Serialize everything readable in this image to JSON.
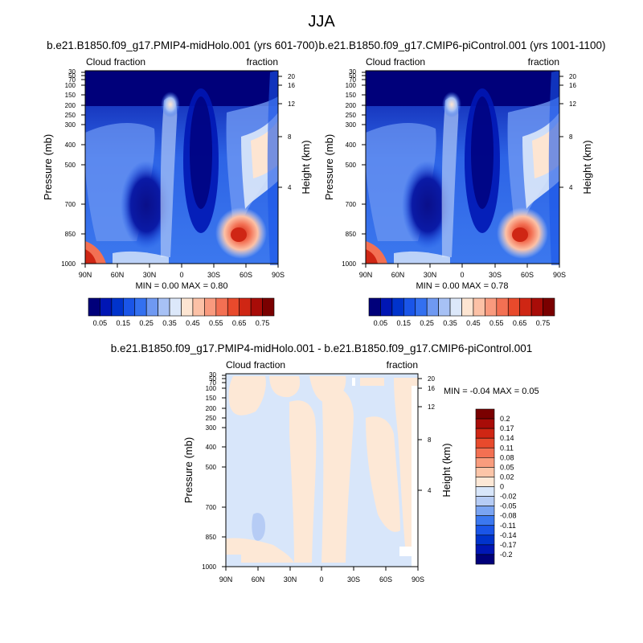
{
  "figure_title": "JJA",
  "colors": {
    "seq_palette": [
      "#00007a",
      "#0016b4",
      "#0033cc",
      "#1a55e8",
      "#3370f0",
      "#6f99f2",
      "#a7c1f5",
      "#dce8fa",
      "#fde5d2",
      "#fcc1a6",
      "#f99a7e",
      "#f37053",
      "#e84a2c",
      "#cf2614",
      "#a80c08",
      "#7a0000"
    ],
    "diff_palette": [
      "#00007a",
      "#0016b4",
      "#0033cc",
      "#1a55e8",
      "#3b78f0",
      "#7aa4f2",
      "#b6ccf5",
      "#d8e6fa",
      "#fde8d6",
      "#fcc5a8",
      "#f99c7d",
      "#f37052",
      "#e84a2c",
      "#cf2614",
      "#a80c08",
      "#7a0000"
    ]
  },
  "chart_data": [
    {
      "type": "heatmap",
      "title": "b.e21.B1850.f09_g17.PMIP4-midHolo.001 (yrs 601-700)",
      "left_label": "Cloud fraction",
      "right_label": "fraction",
      "xlabel": "",
      "ylabel": "Pressure (mb)",
      "y2label": "Height (km)",
      "x_ticks": [
        "90N",
        "60N",
        "30N",
        "0",
        "30S",
        "60S",
        "90S"
      ],
      "x_range": [
        90,
        -90
      ],
      "y_ticks": [
        "30",
        "50",
        "70",
        "100",
        "150",
        "200",
        "250",
        "300",
        "400",
        "500",
        "700",
        "850",
        "1000"
      ],
      "y_range_mb": [
        30,
        1000
      ],
      "y2_ticks": [
        "20",
        "16",
        "12",
        "8",
        "4"
      ],
      "min_text": "MIN =   0.00   MAX =   0.80",
      "colorbar_labels": [
        "0.05",
        "0.15",
        "0.25",
        "0.35",
        "0.45",
        "0.55",
        "0.65",
        "0.75"
      ]
    },
    {
      "type": "heatmap",
      "title": "b.e21.B1850.f09_g17.CMIP6-piControl.001 (yrs 1001-1100)",
      "left_label": "Cloud fraction",
      "right_label": "fraction",
      "xlabel": "",
      "ylabel": "Pressure (mb)",
      "y2label": "Height (km)",
      "x_ticks": [
        "90N",
        "60N",
        "30N",
        "0",
        "30S",
        "60S",
        "90S"
      ],
      "x_range": [
        90,
        -90
      ],
      "y_ticks": [
        "30",
        "50",
        "70",
        "100",
        "150",
        "200",
        "250",
        "300",
        "400",
        "500",
        "700",
        "850",
        "1000"
      ],
      "y_range_mb": [
        30,
        1000
      ],
      "y2_ticks": [
        "20",
        "16",
        "12",
        "8",
        "4"
      ],
      "min_text": "MIN =   0.00   MAX =   0.78",
      "colorbar_labels": [
        "0.05",
        "0.15",
        "0.25",
        "0.35",
        "0.45",
        "0.55",
        "0.65",
        "0.75"
      ]
    },
    {
      "type": "heatmap",
      "title": "b.e21.B1850.f09_g17.PMIP4-midHolo.001 - b.e21.B1850.f09_g17.CMIP6-piControl.001",
      "left_label": "Cloud fraction",
      "right_label": "fraction",
      "xlabel": "",
      "ylabel": "Pressure (mb)",
      "y2label": "Height (km)",
      "x_ticks": [
        "90N",
        "60N",
        "30N",
        "0",
        "30S",
        "60S",
        "90S"
      ],
      "x_range": [
        90,
        -90
      ],
      "y_ticks": [
        "30",
        "50",
        "70",
        "100",
        "150",
        "200",
        "250",
        "300",
        "400",
        "500",
        "700",
        "850",
        "1000"
      ],
      "y_range_mb": [
        30,
        1000
      ],
      "y2_ticks": [
        "20",
        "16",
        "12",
        "8",
        "4"
      ],
      "min_text": "MIN =  -0.04   MAX =   0.05",
      "colorbar_labels": [
        "0.2",
        "0.17",
        "0.14",
        "0.11",
        "0.08",
        "0.05",
        "0.02",
        "0",
        "-0.02",
        "-0.05",
        "-0.08",
        "-0.11",
        "-0.14",
        "-0.17",
        "-0.2"
      ]
    }
  ]
}
